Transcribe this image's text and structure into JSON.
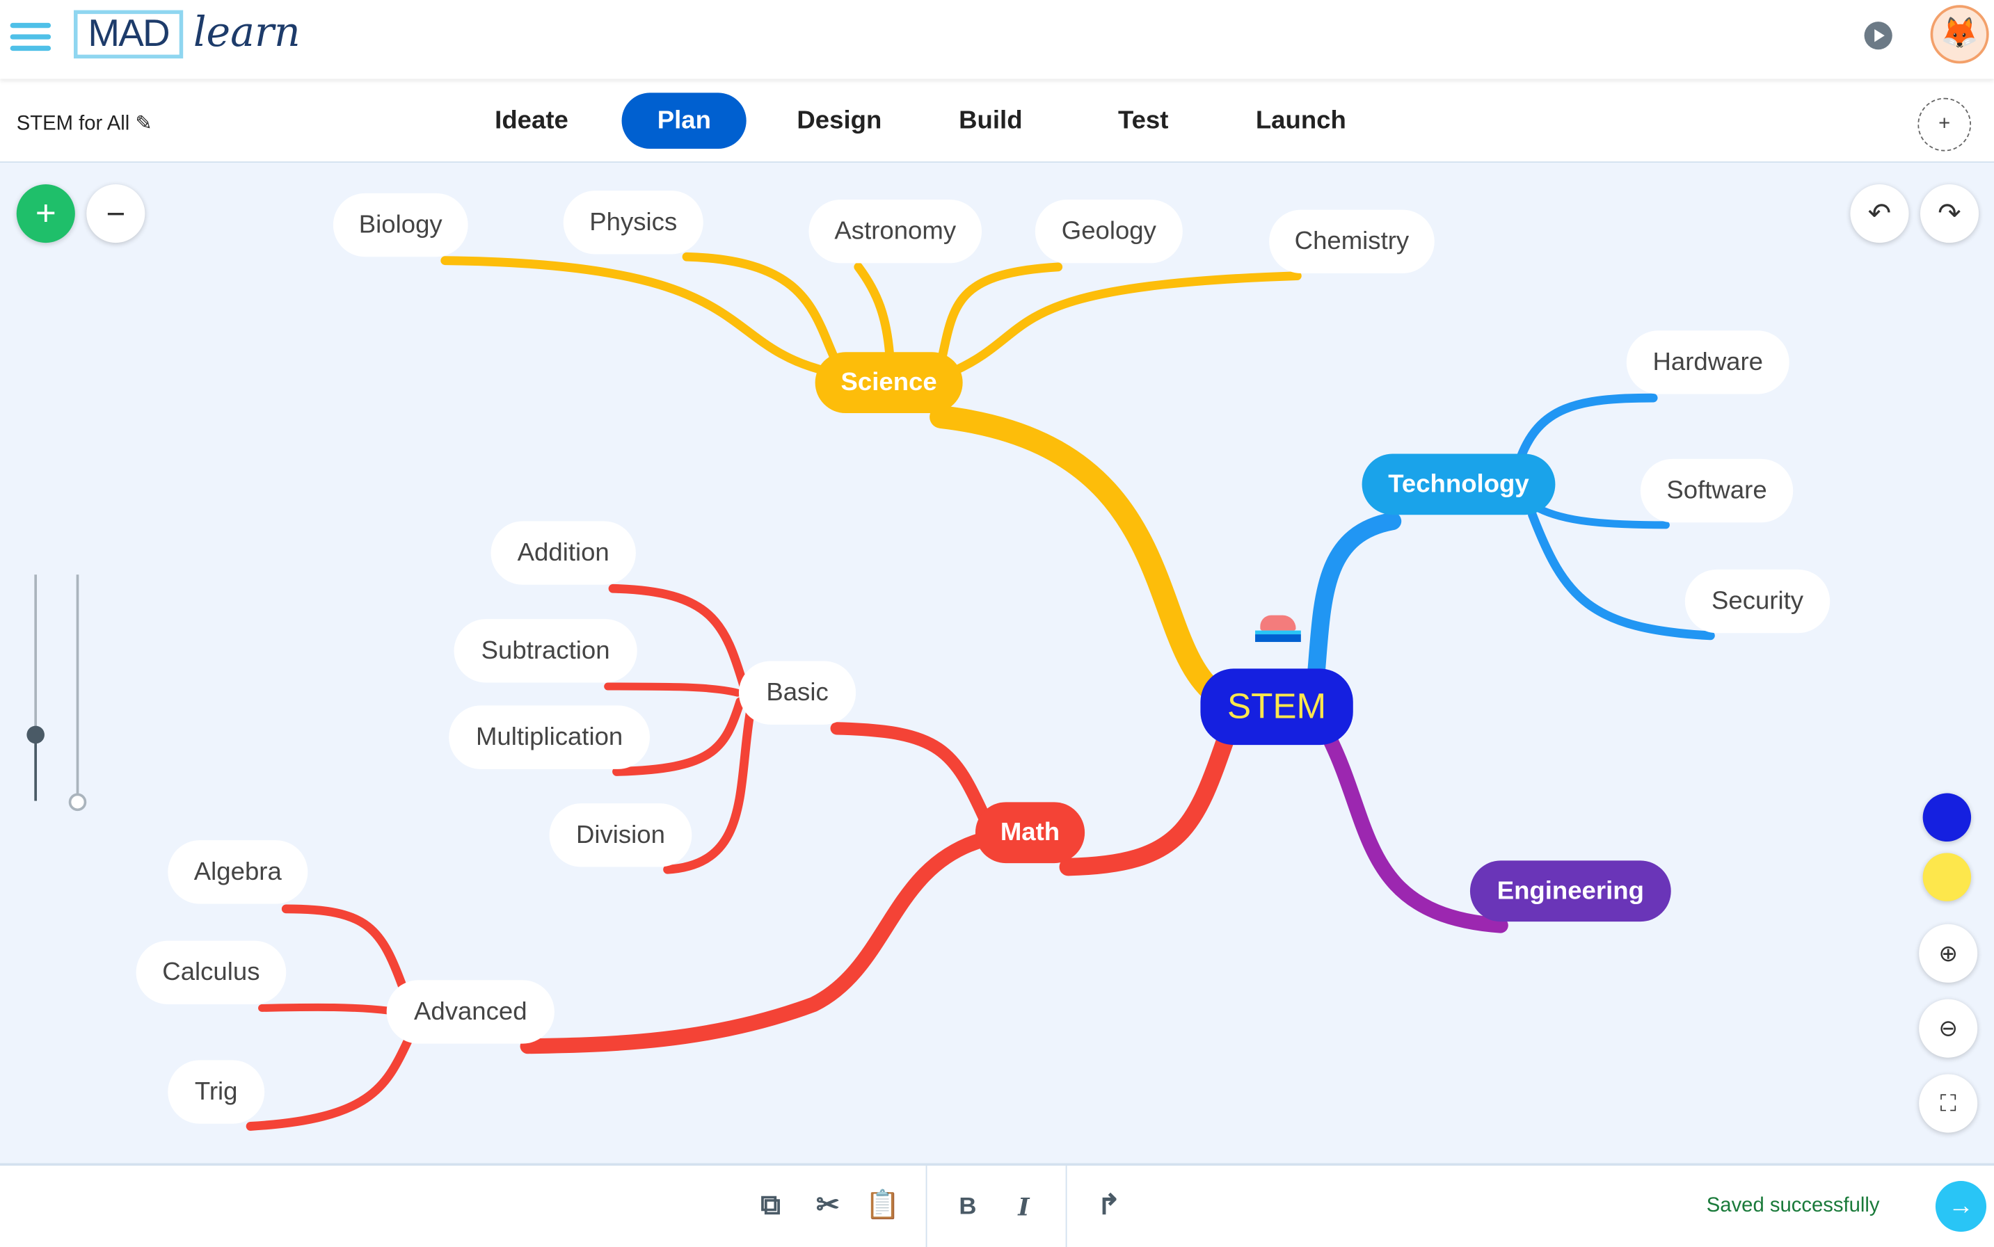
{
  "header": {
    "logo_text": "MAD-learn",
    "menu_icon": "hamburger-icon",
    "play_icon": "play-icon",
    "avatar": "fox-avatar"
  },
  "toolbar": {
    "project_title": "STEM for All",
    "edit_icon": "pencil-icon",
    "tabs": [
      {
        "label": "Ideate"
      },
      {
        "label": "Plan",
        "active": true
      },
      {
        "label": "Design"
      },
      {
        "label": "Build"
      },
      {
        "label": "Test"
      },
      {
        "label": "Launch"
      }
    ],
    "add_icon": "plus-icon"
  },
  "canvas": {
    "zoom_in_label": "+",
    "zoom_out_label": "−",
    "nodes": {
      "stem": "STEM",
      "science": "Science",
      "technology": "Technology",
      "engineering": "Engineering",
      "math": "Math",
      "biology": "Biology",
      "physics": "Physics",
      "astronomy": "Astronomy",
      "geology": "Geology",
      "chemistry": "Chemistry",
      "hardware": "Hardware",
      "software": "Software",
      "security": "Security",
      "basic": "Basic",
      "addition": "Addition",
      "subtraction": "Subtraction",
      "multiplication": "Multiplication",
      "division": "Division",
      "advanced": "Advanced",
      "algebra": "Algebra",
      "calculus": "Calculus",
      "trig": "Trig"
    },
    "colors": {
      "science": "#fdbd0a",
      "technology": "#1aa3ea",
      "engineering": "#6a35b8",
      "math": "#f44336",
      "stem": "#1520e0",
      "stem_text": "#fde74c",
      "canvas_bg": "#eef4fd"
    },
    "palette": [
      "#1520e0",
      "#fde74c"
    ]
  },
  "bottom": {
    "icons": [
      "copy-icon",
      "cut-icon",
      "paste-icon",
      "bold-icon",
      "italic-icon",
      "redo-icon"
    ],
    "bold": "B",
    "italic": "I",
    "status": "Saved successfully",
    "next_icon": "arrow-right-icon"
  }
}
